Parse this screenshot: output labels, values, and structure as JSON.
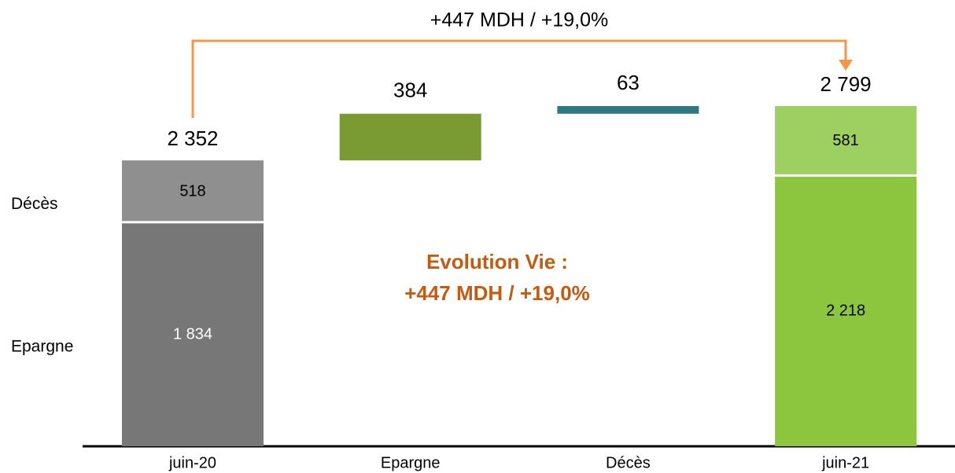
{
  "chart_data": {
    "type": "waterfall",
    "title": "+447 MDH / +19,0%",
    "annotation": [
      "Evolution  Vie :",
      "+447 MDH / +19,0%"
    ],
    "categories": [
      "juin-20",
      "Epargne",
      "Décès",
      "juin-21"
    ],
    "series": [
      {
        "name": "Epargne",
        "values": [
          1834,
          384,
          null,
          2218
        ],
        "value_labels": [
          "1 834",
          "384",
          null,
          "2 218"
        ],
        "colors": [
          "#777777",
          "#7a9a32",
          null,
          "#8cc63f"
        ]
      },
      {
        "name": "Décès",
        "values": [
          518,
          null,
          63,
          581
        ],
        "value_labels": [
          "518",
          null,
          "63",
          "581"
        ],
        "colors": [
          "#8f8f8f",
          null,
          "#2e7880",
          "#9dd061"
        ]
      }
    ],
    "totals": {
      "values": [
        2352,
        null,
        null,
        2799
      ],
      "value_labels": [
        "2 352",
        null,
        null,
        "2 799"
      ]
    }
  }
}
